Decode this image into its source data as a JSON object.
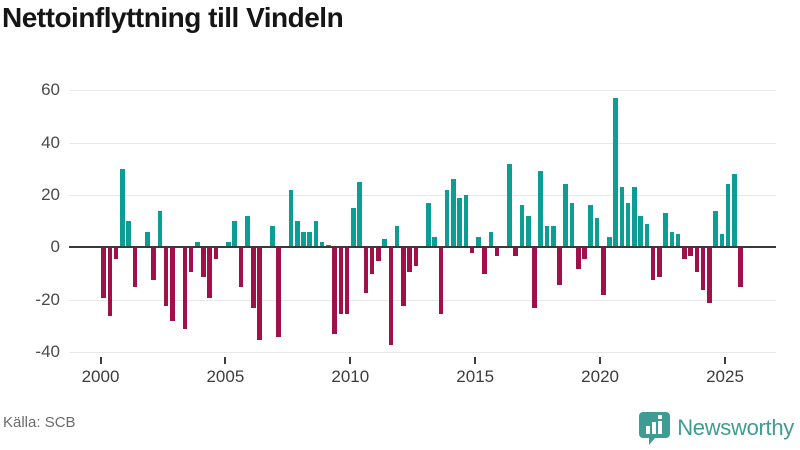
{
  "chart_data": {
    "type": "bar",
    "title": "Nettoinflyttning till Vindeln",
    "source": "Källa: SCB",
    "x_tick_labels": [
      "2000",
      "2005",
      "2010",
      "2015",
      "2020",
      "2025"
    ],
    "y_ticks": [
      60,
      40,
      20,
      0,
      -20,
      -40
    ],
    "y_tick_labels": [
      "60",
      "40",
      "20",
      "0",
      "-20",
      "-40"
    ],
    "ylim": [
      -40,
      60
    ],
    "grid": true,
    "legend_position": "none",
    "colors": {
      "positive": "#0a9e94",
      "negative": "#a01149"
    },
    "frequency": "quarterly",
    "quarters": [
      {
        "year": 2000,
        "values": [
          -19,
          -26,
          -4,
          30
        ]
      },
      {
        "year": 2001,
        "values": [
          10,
          -15,
          0,
          6
        ]
      },
      {
        "year": 2002,
        "values": [
          -12,
          14,
          -22,
          -28
        ]
      },
      {
        "year": 2003,
        "values": [
          0,
          -31,
          -9,
          2
        ]
      },
      {
        "year": 2004,
        "values": [
          -11,
          -19,
          -4,
          0
        ]
      },
      {
        "year": 2005,
        "values": [
          2,
          10,
          -15,
          12
        ]
      },
      {
        "year": 2006,
        "values": [
          -23,
          -35,
          0,
          8
        ]
      },
      {
        "year": 2007,
        "values": [
          -34,
          0,
          22,
          10
        ]
      },
      {
        "year": 2008,
        "values": [
          6,
          6,
          10,
          2
        ]
      },
      {
        "year": 2009,
        "values": [
          1,
          -33,
          -25,
          -25
        ]
      },
      {
        "year": 2010,
        "values": [
          15,
          25,
          -17,
          -10
        ]
      },
      {
        "year": 2011,
        "values": [
          -5,
          3,
          -37,
          8
        ]
      },
      {
        "year": 2012,
        "values": [
          -22,
          -9,
          -7,
          0
        ]
      },
      {
        "year": 2013,
        "values": [
          17,
          4,
          -25,
          22
        ]
      },
      {
        "year": 2014,
        "values": [
          26,
          19,
          20,
          -2
        ]
      },
      {
        "year": 2015,
        "values": [
          4,
          -10,
          6,
          -3
        ]
      },
      {
        "year": 2016,
        "values": [
          0,
          32,
          -3,
          16
        ]
      },
      {
        "year": 2017,
        "values": [
          12,
          -23,
          29,
          8
        ]
      },
      {
        "year": 2018,
        "values": [
          8,
          -14,
          24,
          17
        ]
      },
      {
        "year": 2019,
        "values": [
          -8,
          -4,
          16,
          11
        ]
      },
      {
        "year": 2020,
        "values": [
          -18,
          4,
          57,
          23
        ]
      },
      {
        "year": 2021,
        "values": [
          17,
          23,
          12,
          9
        ]
      },
      {
        "year": 2022,
        "values": [
          -12,
          -11,
          13,
          6
        ]
      },
      {
        "year": 2023,
        "values": [
          5,
          -4,
          -3,
          -9
        ]
      },
      {
        "year": 2024,
        "values": [
          -16,
          -21,
          14,
          5
        ]
      },
      {
        "year": 2025,
        "values": [
          24,
          28,
          -15
        ]
      }
    ]
  },
  "footer": {
    "source": "Källa: SCB",
    "logo_text": "Newsworthy",
    "logo_icon": "bar-chart-pin-icon"
  }
}
